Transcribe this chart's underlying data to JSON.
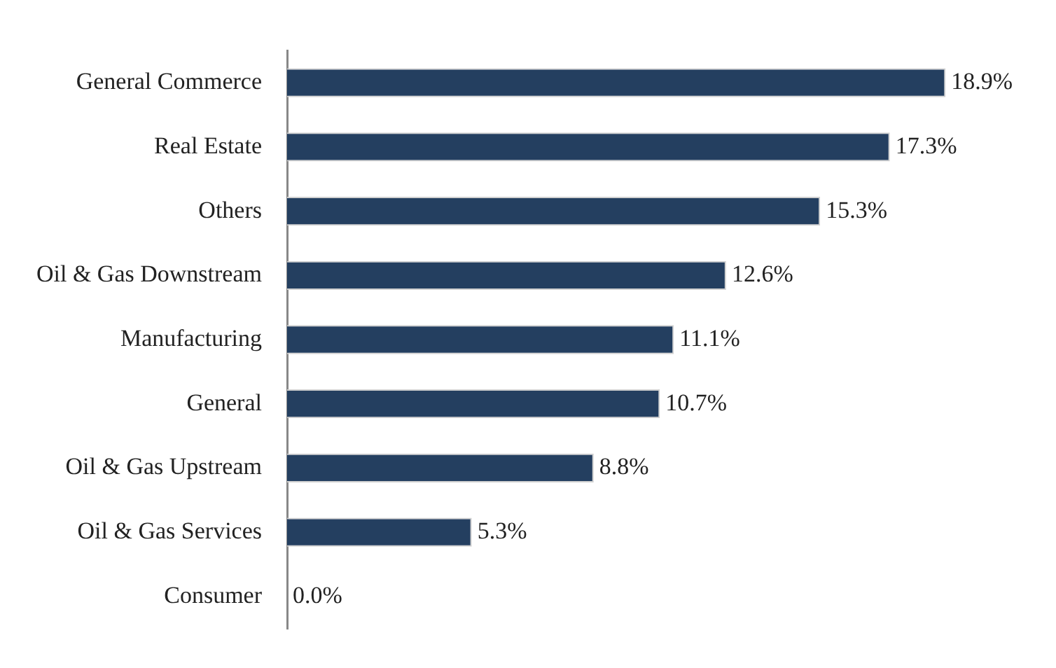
{
  "chart_data": {
    "type": "bar",
    "orientation": "horizontal",
    "categories": [
      "General Commerce",
      "Real Estate",
      "Others",
      "Oil & Gas Downstream",
      "Manufacturing",
      "General",
      "Oil & Gas Upstream",
      "Oil & Gas Services",
      "Consumer"
    ],
    "values": [
      18.9,
      17.3,
      15.3,
      12.6,
      11.1,
      10.7,
      8.8,
      5.3,
      0.0
    ],
    "value_labels": [
      "18.9%",
      "17.3%",
      "15.3%",
      "12.6%",
      "11.1%",
      "10.7%",
      "8.8%",
      "5.3%",
      "0.0%"
    ],
    "color": "#243f60"
  }
}
